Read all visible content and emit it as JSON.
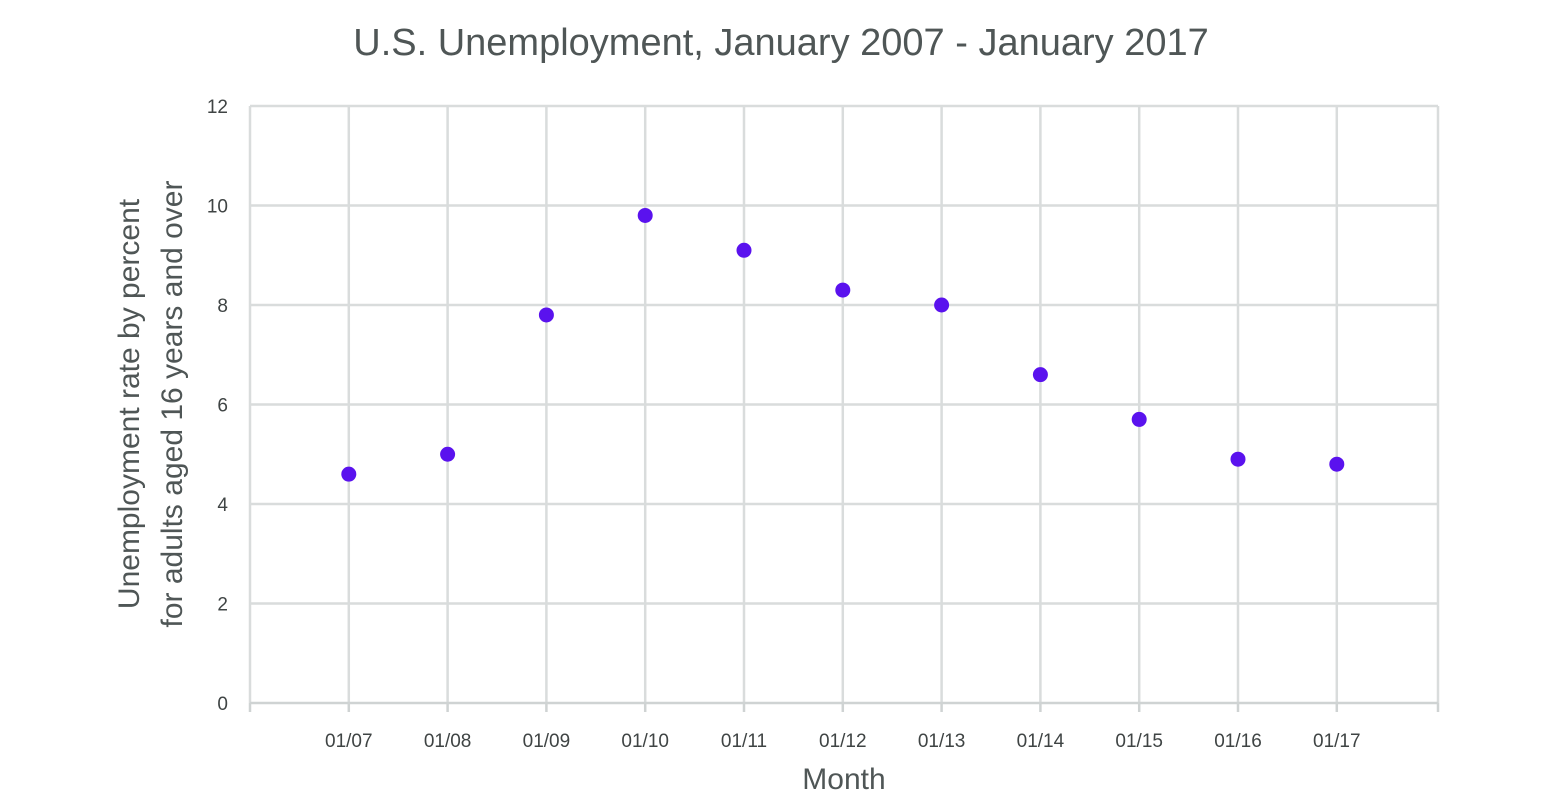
{
  "chart_data": {
    "type": "scatter",
    "title": "U.S. Unemployment, January 2007 - January 2017",
    "xlabel": "Month",
    "ylabel_lines": [
      "Unemployment  rate by percent",
      "for adults aged 16 years and over"
    ],
    "categories": [
      "01/07",
      "01/08",
      "01/09",
      "01/10",
      "01/11",
      "01/12",
      "01/13",
      "01/14",
      "01/15",
      "01/16",
      "01/17"
    ],
    "series": [
      {
        "values": [
          4.6,
          5.0,
          7.8,
          9.8,
          9.1,
          8.3,
          8.0,
          6.6,
          5.7,
          4.9,
          4.8
        ]
      }
    ],
    "ylim": [
      0,
      12
    ],
    "yticks": [
      0,
      2,
      4,
      6,
      8,
      10,
      12
    ],
    "grid": {
      "horizontal": true,
      "vertical": true
    },
    "legend": "none",
    "colors": {
      "marker": "#5a12ee",
      "grid": "#d9dcdc",
      "text": "#4f5656"
    }
  }
}
